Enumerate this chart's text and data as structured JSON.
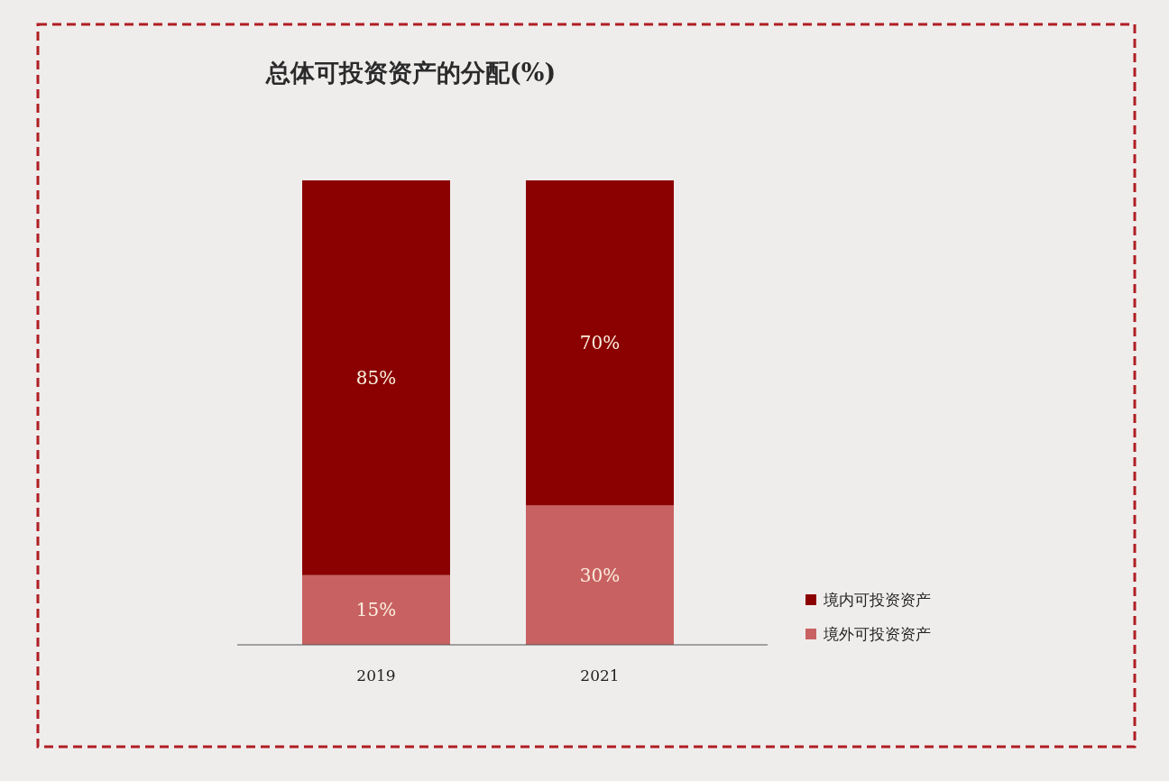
{
  "chart_data": {
    "type": "bar",
    "title": "总体可投资资产的分配(%)",
    "categories": [
      "2019",
      "2021"
    ],
    "stacked": true,
    "legend": "right",
    "series": [
      {
        "name": "境外可投资资产",
        "color": "#c86262",
        "values": [
          15,
          30
        ],
        "value_labels": [
          "15%",
          "30%"
        ]
      },
      {
        "name": "境内可投资资产",
        "color": "#8b0000",
        "values": [
          85,
          70
        ],
        "value_labels": [
          "85%",
          "70%"
        ]
      }
    ]
  }
}
